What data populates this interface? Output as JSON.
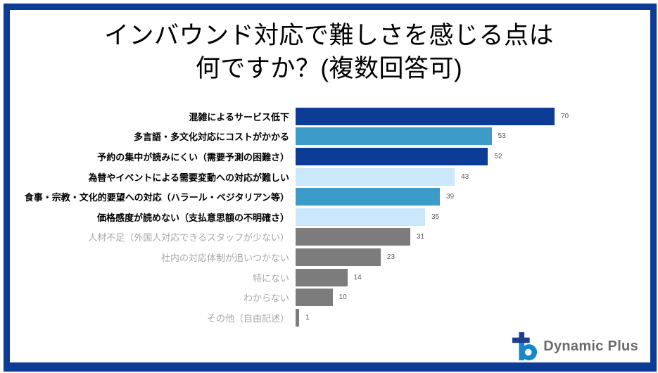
{
  "page": {
    "title_lines": [
      "インバウンド対応で難しさを感じる点は",
      "何ですか？(複数回答可)"
    ]
  },
  "chart_data": {
    "type": "bar",
    "orientation": "horizontal",
    "title": "インバウンド対応で難しさを感じる点は何ですか？(複数回答可)",
    "categories": [
      "混雑によるサービス低下",
      "多言語・多文化対応にコストがかかる",
      "予約の集中が読みにくい（需要予測の困難さ）",
      "為替やイベントによる需要変動への対応が難しい",
      "食事・宗教・文化的要望への対応（ハラール・ベジタリアン等）",
      "価格感度が読めない（支払意思額の不明確さ）",
      "人材不足（外国人対応できるスタッフが少ない）",
      "社内の対応体制が追いつかない",
      "特にない",
      "わからない",
      "その他（自由記述）"
    ],
    "values": [
      70,
      53,
      52,
      43,
      39,
      35,
      31,
      23,
      14,
      10,
      1
    ],
    "bar_colors": [
      "#0D3C96",
      "#3C9BC9",
      "#0D3C96",
      "#C9E8FC",
      "#3C9BC9",
      "#C9E8FC",
      "#7C7C7C",
      "#7C7C7C",
      "#7C7C7C",
      "#7C7C7C",
      "#7C7C7C"
    ],
    "muted_labels": [
      false,
      false,
      false,
      false,
      false,
      false,
      true,
      true,
      true,
      true,
      true
    ],
    "value_labels_shown": true,
    "axis_shown": false,
    "grid": false,
    "legend": "none",
    "xlim": [
      0,
      74
    ]
  },
  "colors": {
    "frame": "#0D3C96",
    "navy": "#0D3C96",
    "medium_blue": "#3C9BC9",
    "light_blue": "#C9E8FC",
    "bar_gray": "#7C7C7C",
    "value_text": "#595959",
    "muted_label": "#A6A6A6",
    "title_text": "#000000",
    "logo_navy": "#1E3E8F",
    "logo_blue": "#1787CC",
    "logo_text": "#6B6B6B",
    "background": "#FFFFFF"
  },
  "logo": {
    "text": "Dynamic Plus"
  }
}
